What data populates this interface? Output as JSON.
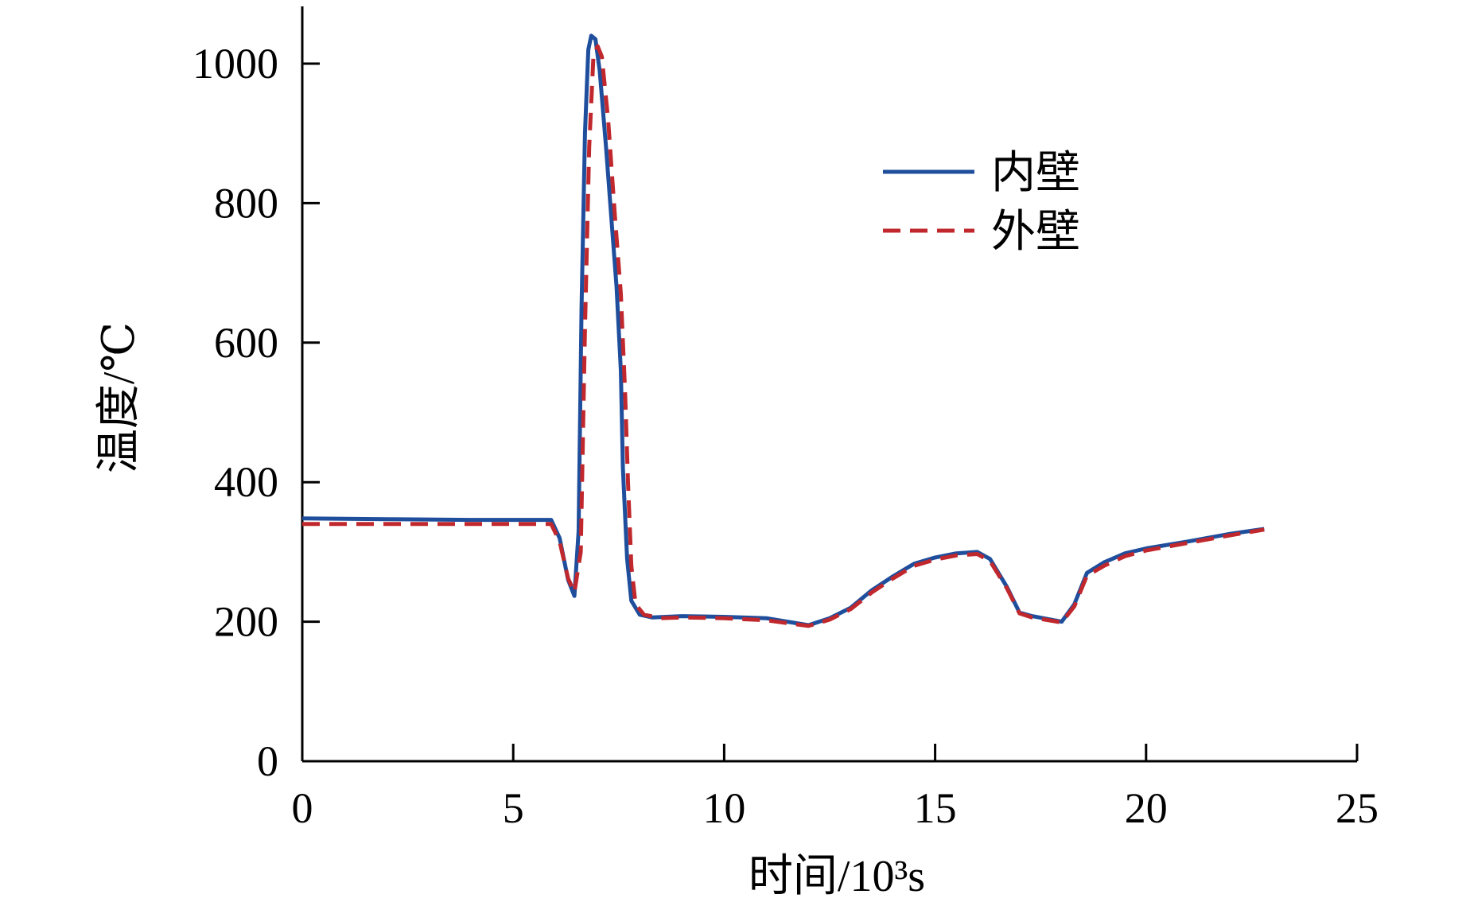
{
  "chart_data": {
    "type": "line",
    "xlabel": "时间/10³s",
    "ylabel": "温度/℃",
    "xlim": [
      0,
      25
    ],
    "ylim": [
      0,
      1000
    ],
    "x_ticks": [
      0,
      5,
      10,
      15,
      20,
      25
    ],
    "y_ticks": [
      0,
      200,
      400,
      600,
      800,
      1000
    ],
    "grid": false,
    "legend_position": "top-right",
    "series": [
      {
        "name": "内壁",
        "color": "#1f4e9c",
        "style": "solid",
        "points": [
          [
            0,
            348
          ],
          [
            2,
            347
          ],
          [
            4,
            346
          ],
          [
            5.9,
            346
          ],
          [
            6.1,
            320
          ],
          [
            6.3,
            260
          ],
          [
            6.45,
            237
          ],
          [
            6.55,
            330
          ],
          [
            6.62,
            650
          ],
          [
            6.7,
            900
          ],
          [
            6.78,
            1020
          ],
          [
            6.85,
            1040
          ],
          [
            6.95,
            1035
          ],
          [
            7.05,
            990
          ],
          [
            7.2,
            880
          ],
          [
            7.35,
            760
          ],
          [
            7.45,
            680
          ],
          [
            7.55,
            560
          ],
          [
            7.6,
            420
          ],
          [
            7.7,
            290
          ],
          [
            7.8,
            230
          ],
          [
            8,
            210
          ],
          [
            8.3,
            206
          ],
          [
            9,
            208
          ],
          [
            10,
            207
          ],
          [
            11,
            205
          ],
          [
            11.5,
            200
          ],
          [
            12,
            195
          ],
          [
            12.5,
            205
          ],
          [
            13,
            220
          ],
          [
            13.5,
            245
          ],
          [
            14,
            265
          ],
          [
            14.5,
            283
          ],
          [
            15,
            292
          ],
          [
            15.5,
            298
          ],
          [
            16,
            300
          ],
          [
            16.3,
            290
          ],
          [
            16.7,
            250
          ],
          [
            17,
            213
          ],
          [
            17.3,
            208
          ],
          [
            18,
            200
          ],
          [
            18.3,
            225
          ],
          [
            18.6,
            270
          ],
          [
            19,
            285
          ],
          [
            19.5,
            298
          ],
          [
            20,
            305
          ],
          [
            21,
            315
          ],
          [
            22,
            326
          ],
          [
            22.8,
            333
          ]
        ]
      },
      {
        "name": "外壁",
        "color": "#c0282d",
        "style": "dashed",
        "points": [
          [
            0,
            340
          ],
          [
            2,
            340
          ],
          [
            4,
            340
          ],
          [
            5.9,
            340
          ],
          [
            6.1,
            315
          ],
          [
            6.3,
            262
          ],
          [
            6.45,
            242
          ],
          [
            6.6,
            300
          ],
          [
            6.7,
            620
          ],
          [
            6.8,
            880
          ],
          [
            6.9,
            1010
          ],
          [
            7.0,
            1025
          ],
          [
            7.1,
            1010
          ],
          [
            7.25,
            920
          ],
          [
            7.4,
            790
          ],
          [
            7.55,
            670
          ],
          [
            7.65,
            530
          ],
          [
            7.72,
            400
          ],
          [
            7.8,
            280
          ],
          [
            7.9,
            225
          ],
          [
            8.1,
            210
          ],
          [
            8.5,
            205
          ],
          [
            9,
            206
          ],
          [
            10,
            205
          ],
          [
            11,
            202
          ],
          [
            11.5,
            198
          ],
          [
            12,
            194
          ],
          [
            12.5,
            203
          ],
          [
            13,
            218
          ],
          [
            13.5,
            242
          ],
          [
            14,
            262
          ],
          [
            14.5,
            280
          ],
          [
            15,
            289
          ],
          [
            15.5,
            295
          ],
          [
            16,
            297
          ],
          [
            16.3,
            287
          ],
          [
            16.7,
            248
          ],
          [
            17,
            212
          ],
          [
            17.3,
            206
          ],
          [
            18,
            199
          ],
          [
            18.3,
            222
          ],
          [
            18.6,
            266
          ],
          [
            19,
            280
          ],
          [
            19.5,
            294
          ],
          [
            20,
            302
          ],
          [
            21,
            313
          ],
          [
            22,
            324
          ],
          [
            22.8,
            332
          ]
        ]
      }
    ]
  }
}
